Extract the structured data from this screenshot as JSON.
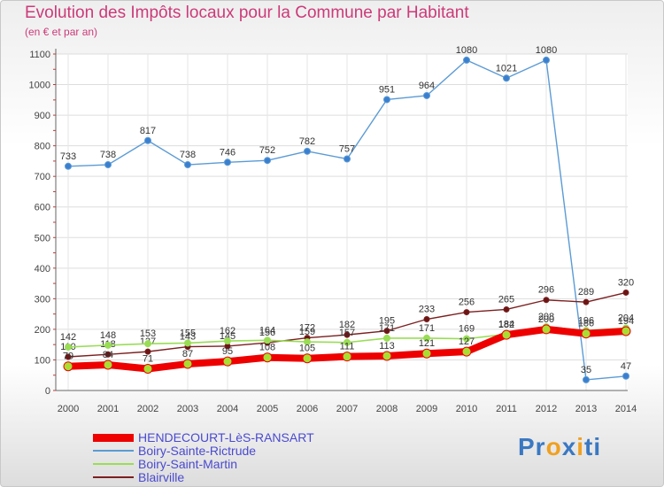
{
  "header": {
    "title": "Evolution des Impôts locaux pour la Commune par Habitant",
    "subtitle": "(en € et par an)"
  },
  "chart_data": {
    "type": "line",
    "title": "Evolution des Impôts locaux pour la Commune par Habitant",
    "ylabel": "(en € et par an)",
    "xlabel": "",
    "ylim": [
      0,
      1100
    ],
    "yticks": [
      0,
      100,
      200,
      300,
      400,
      500,
      600,
      700,
      800,
      900,
      1000,
      1100
    ],
    "x": [
      2000,
      2001,
      2002,
      2003,
      2004,
      2005,
      2006,
      2007,
      2008,
      2009,
      2010,
      2011,
      2012,
      2013,
      2014
    ],
    "series": [
      {
        "name": "Boiry-Sainte-Rictrude",
        "color": "#5b9bd5",
        "values": [
          733,
          738,
          817,
          738,
          746,
          752,
          782,
          757,
          951,
          964,
          1080,
          1021,
          1080,
          35,
          47
        ]
      },
      {
        "name": "Blairville",
        "color": "#7b1f1f",
        "values": [
          110,
          118,
          127,
          143,
          145,
          156,
          172,
          182,
          195,
          233,
          256,
          265,
          296,
          289,
          320
        ]
      },
      {
        "name": "Boiry-Saint-Martin",
        "color": "#99dd55",
        "values": [
          142,
          148,
          153,
          155,
          162,
          164,
          159,
          157,
          171,
          171,
          169,
          184,
          208,
          196,
          204
        ]
      },
      {
        "name": "HENDECOURT-LèS-RANSART",
        "color": "#ee0000",
        "values": [
          79,
          84,
          71,
          87,
          95,
          108,
          105,
          111,
          113,
          121,
          127,
          182,
          200,
          186,
          194
        ]
      }
    ]
  },
  "legend": [
    {
      "name": "HENDECOURT-LèS-RANSART",
      "color": "#ee0000"
    },
    {
      "name": "Boiry-Sainte-Rictrude",
      "color": "#5b9bd5"
    },
    {
      "name": "Boiry-Saint-Martin",
      "color": "#99dd55"
    },
    {
      "name": "Blairville",
      "color": "#7b1f1f"
    }
  ],
  "logo": {
    "parts": [
      "Pr",
      "o",
      "x",
      "i",
      "ti"
    ],
    "colors": [
      "#3a78c2",
      "#f0a020",
      "#3a78c2",
      "#f0a020",
      "#3a78c2"
    ]
  }
}
